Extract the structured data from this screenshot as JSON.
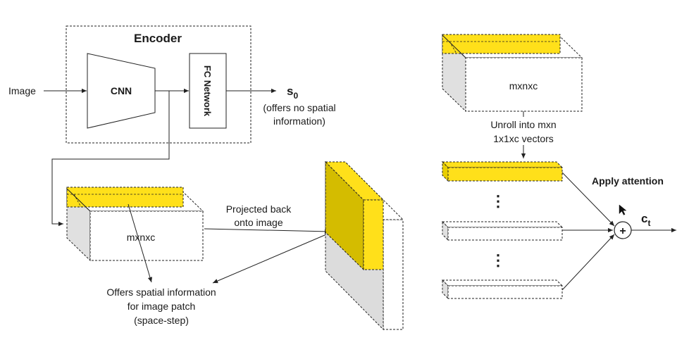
{
  "colors": {
    "yellow": "#FFE01A",
    "yellow_dark": "#D4BC00",
    "yellow_mid": "#E8CE00",
    "gray_side": "#E0E0E0",
    "gray_lower": "#DCDCDC",
    "stroke": "#222222"
  },
  "encoder": {
    "title": "Encoder",
    "cnn_label": "CNN",
    "fc_label": "FC Network",
    "input_label": "Image",
    "output_label": "s",
    "output_subscript": "0",
    "output_note_line1": "(offers no spatial",
    "output_note_line2": "information)"
  },
  "left_tensor": {
    "label": "mxnxc",
    "projection_line1": "Projected back",
    "projection_line2": "onto image",
    "spatial_line1": "Offers spatial information",
    "spatial_line2": "for image patch",
    "spatial_line3": "(space-step)"
  },
  "right_tensor": {
    "label": "mxnxc",
    "unroll_line1": "Unroll into mxn",
    "unroll_line2": "1x1xc vectors",
    "ellipsis_1": "⋮",
    "ellipsis_2": "⋮",
    "attention_label": "Apply attention",
    "plus_symbol": "+",
    "output_label": "c",
    "output_subscript": "t"
  },
  "icons": {
    "cursor": "cursor-icon"
  }
}
